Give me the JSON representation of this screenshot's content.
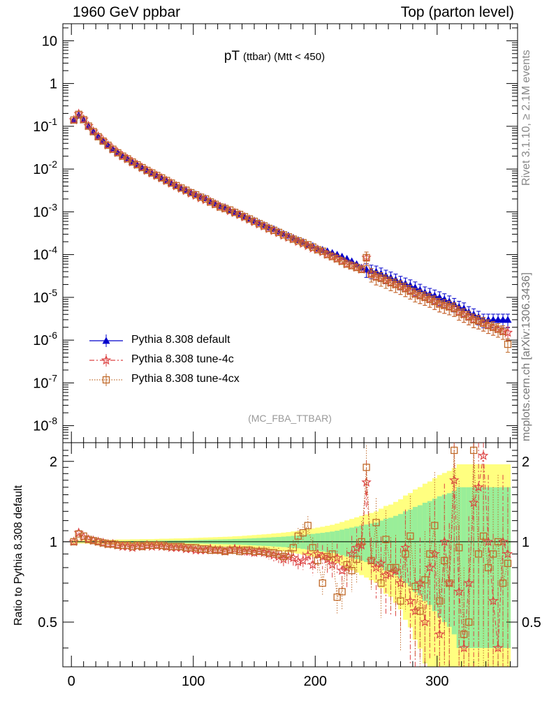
{
  "header": {
    "left": "1960 GeV ppbar",
    "right": "Top (parton level)"
  },
  "side_labels": {
    "rivet": "Rivet 3.1.10, ≥ 2.1M events",
    "mcplots": "mcplots.cern.ch [arXiv:1306.3436]"
  },
  "title": {
    "main": "pT",
    "sub": "(ttbar) (Mtt < 450)"
  },
  "analysis_id": "(MC_FBA_TTBAR)",
  "legend": [
    {
      "label": "Pythia 8.308 default",
      "color": "#0000cc",
      "marker": "triangle",
      "style": "solid"
    },
    {
      "label": "Pythia 8.308 tune-4c",
      "color": "#dd4444",
      "marker": "star",
      "style": "dashdot"
    },
    {
      "label": "Pythia 8.308 tune-4cx",
      "color": "#c06a2a",
      "marker": "square",
      "style": "dotted"
    }
  ],
  "chart_data": [
    {
      "type": "line",
      "panel": "main",
      "yscale": "log",
      "xlim": [
        -7,
        366
      ],
      "ylim": [
        4e-09,
        25
      ],
      "xticks": [
        0,
        100,
        200,
        300
      ],
      "yticks": [
        {
          "value": 1e-08,
          "label": "10^-8"
        },
        {
          "value": 1e-07,
          "label": "10^-7"
        },
        {
          "value": 1e-06,
          "label": "10^-6"
        },
        {
          "value": 1e-05,
          "label": "10^-5"
        },
        {
          "value": 0.0001,
          "label": "10^-4"
        },
        {
          "value": 0.001,
          "label": "10^-3"
        },
        {
          "value": 0.01,
          "label": "10^-2"
        },
        {
          "value": 0.1,
          "label": "10^-1"
        },
        {
          "value": 1,
          "label": "1"
        },
        {
          "value": 10,
          "label": "10"
        }
      ],
      "x": [
        2,
        6,
        10,
        14,
        18,
        22,
        26,
        30,
        34,
        38,
        42,
        46,
        50,
        54,
        58,
        62,
        66,
        70,
        74,
        78,
        82,
        86,
        90,
        94,
        98,
        102,
        106,
        110,
        114,
        118,
        122,
        126,
        130,
        134,
        138,
        142,
        146,
        150,
        154,
        158,
        162,
        166,
        170,
        174,
        178,
        182,
        186,
        190,
        194,
        198,
        202,
        206,
        210,
        214,
        218,
        222,
        226,
        230,
        234,
        238,
        242,
        246,
        250,
        254,
        258,
        262,
        266,
        270,
        274,
        278,
        282,
        286,
        290,
        294,
        298,
        302,
        306,
        310,
        314,
        318,
        322,
        326,
        330,
        334,
        338,
        342,
        346,
        350,
        354,
        358
      ],
      "series": [
        {
          "name": "Pythia 8.308 default",
          "values": [
            0.14,
            0.18,
            0.14,
            0.1,
            0.075,
            0.058,
            0.046,
            0.037,
            0.03,
            0.025,
            0.021,
            0.018,
            0.015,
            0.013,
            0.011,
            0.0095,
            0.0083,
            0.0072,
            0.0063,
            0.0055,
            0.0048,
            0.0042,
            0.0037,
            0.0033,
            0.0029,
            0.0026,
            0.0023,
            0.0021,
            0.0018,
            0.0016,
            0.0014,
            0.0013,
            0.0011,
            0.001,
            0.0009,
            0.0008,
            0.0007,
            0.00063,
            0.00056,
            0.0005,
            0.00044,
            0.0004,
            0.00035,
            0.00031,
            0.00028,
            0.00025,
            0.00022,
            0.0002,
            0.00017,
            0.00016,
            0.00014,
            0.00013,
            0.00012,
            0.00011,
            0.0001,
            9e-05,
            8e-05,
            7e-05,
            6e-05,
            5e-05,
            4.5e-05,
            4.2e-05,
            4e-05,
            3.6e-05,
            3.2e-05,
            2.9e-05,
            2.6e-05,
            2.3e-05,
            2.1e-05,
            1.9e-05,
            1.7e-05,
            1.5e-05,
            1.3e-05,
            1.2e-05,
            1.1e-05,
            1e-05,
            9e-06,
            8e-06,
            7e-06,
            6e-06,
            5.5e-06,
            4.5e-06,
            4e-06,
            3.5e-06,
            3e-06,
            3e-06,
            3e-06,
            3e-06,
            3e-06,
            3e-06
          ]
        },
        {
          "name": "Pythia 8.308 tune-4c",
          "values": [
            0.14,
            0.195,
            0.145,
            0.102,
            0.076,
            0.058,
            0.046,
            0.036,
            0.029,
            0.024,
            0.02,
            0.0172,
            0.0145,
            0.0125,
            0.0107,
            0.0092,
            0.008,
            0.007,
            0.0061,
            0.0053,
            0.0046,
            0.004,
            0.0035,
            0.0031,
            0.0027,
            0.0024,
            0.0021,
            0.0019,
            0.0017,
            0.0015,
            0.0013,
            0.0012,
            0.00105,
            0.00095,
            0.00085,
            0.00075,
            0.00066,
            0.00058,
            0.00051,
            0.00046,
            0.0004,
            0.00036,
            0.00032,
            0.00028,
            0.00025,
            0.00023,
            0.0002,
            0.00018,
            0.00016,
            0.00014,
            0.00013,
            0.000115,
            0.0001,
            9e-05,
            8e-05,
            7e-05,
            6e-05,
            5.5e-05,
            5e-05,
            4.5e-05,
            8.5e-05,
            3.5e-05,
            3e-05,
            2.8e-05,
            2.5e-05,
            2.2e-05,
            2e-05,
            1.8e-05,
            1.6e-05,
            1.4e-05,
            1.2e-05,
            1.1e-05,
            1e-05,
            9e-06,
            8e-06,
            7e-06,
            6.5e-06,
            6e-06,
            5.5e-06,
            4.5e-06,
            4e-06,
            3.5e-06,
            3e-06,
            2.8e-06,
            2.5e-06,
            2.2e-06,
            2e-06,
            1.8e-06,
            1.6e-06,
            1.5e-06
          ]
        },
        {
          "name": "Pythia 8.308 tune-4cx",
          "values": [
            0.14,
            0.19,
            0.143,
            0.101,
            0.075,
            0.057,
            0.045,
            0.036,
            0.029,
            0.024,
            0.02,
            0.0173,
            0.0146,
            0.0126,
            0.0108,
            0.0093,
            0.0081,
            0.0071,
            0.0062,
            0.0054,
            0.0047,
            0.0041,
            0.0036,
            0.0032,
            0.0028,
            0.0025,
            0.0022,
            0.002,
            0.0017,
            0.0015,
            0.0013,
            0.0012,
            0.0011,
            0.00097,
            0.00087,
            0.00077,
            0.00068,
            0.0006,
            0.00053,
            0.00047,
            0.00041,
            0.00037,
            0.00033,
            0.00029,
            0.00026,
            0.00023,
            0.00021,
            0.00019,
            0.00017,
            0.00015,
            0.00013,
            0.00012,
            0.0001,
            9e-05,
            8e-05,
            7e-05,
            6e-05,
            5.5e-05,
            5e-05,
            4.5e-05,
            8.5e-05,
            3.5e-05,
            3e-05,
            2.8e-05,
            2.5e-05,
            2.2e-05,
            2e-05,
            1.8e-05,
            1.6e-05,
            1.4e-05,
            1.2e-05,
            1.1e-05,
            1e-05,
            9e-06,
            8e-06,
            7e-06,
            6.5e-06,
            6e-06,
            5.5e-06,
            4.5e-06,
            4e-06,
            3.5e-06,
            3e-06,
            2.8e-06,
            2.5e-06,
            2.2e-06,
            2e-06,
            1.8e-06,
            1.6e-06,
            8e-07
          ]
        }
      ]
    },
    {
      "type": "line",
      "panel": "ratio",
      "ylabel": "Ratio to Pythia 8.308 default",
      "yscale": "log",
      "xlim": [
        -7,
        366
      ],
      "ylim": [
        0.34,
        2.35
      ],
      "xticks": [
        0,
        100,
        200,
        300
      ],
      "yticks": [
        {
          "value": 0.5,
          "label": "0.5"
        },
        {
          "value": 1,
          "label": "1"
        },
        {
          "value": 2,
          "label": "2"
        }
      ],
      "band": {
        "x": [
          2,
          6,
          10,
          14,
          18,
          22,
          26,
          30,
          34,
          38,
          42,
          46,
          50,
          54,
          58,
          62,
          66,
          70,
          74,
          78,
          82,
          86,
          90,
          94,
          98,
          102,
          106,
          110,
          114,
          118,
          122,
          126,
          130,
          134,
          138,
          142,
          146,
          150,
          154,
          158,
          162,
          166,
          170,
          174,
          178,
          182,
          186,
          190,
          194,
          198,
          202,
          206,
          210,
          214,
          218,
          222,
          226,
          230,
          234,
          238,
          242,
          246,
          250,
          254,
          258,
          262,
          266,
          270,
          274,
          278,
          282,
          286,
          290,
          294,
          298,
          302,
          306,
          310,
          314,
          318,
          322,
          326,
          330,
          334,
          338,
          342,
          346,
          350,
          354,
          358
        ],
        "inner_rel": [
          0.004,
          0.003,
          0.003,
          0.004,
          0.004,
          0.004,
          0.005,
          0.005,
          0.005,
          0.006,
          0.006,
          0.006,
          0.007,
          0.007,
          0.008,
          0.008,
          0.008,
          0.009,
          0.01,
          0.01,
          0.011,
          0.012,
          0.012,
          0.013,
          0.014,
          0.015,
          0.016,
          0.017,
          0.018,
          0.019,
          0.02,
          0.021,
          0.022,
          0.024,
          0.025,
          0.027,
          0.029,
          0.031,
          0.033,
          0.035,
          0.037,
          0.04,
          0.042,
          0.045,
          0.048,
          0.052,
          0.055,
          0.06,
          0.065,
          0.07,
          0.075,
          0.08,
          0.086,
          0.092,
          0.1,
          0.11,
          0.12,
          0.13,
          0.14,
          0.15,
          0.16,
          0.17,
          0.18,
          0.2,
          0.22,
          0.23,
          0.25,
          0.27,
          0.3,
          0.32,
          0.35,
          0.37,
          0.4,
          0.42,
          0.45,
          0.48,
          0.5,
          0.52,
          0.55,
          0.6,
          0.6,
          0.6,
          0.6,
          0.6,
          0.6,
          0.6,
          0.6,
          0.6,
          0.6,
          0.6
        ]
      },
      "series": [
        {
          "name": "Pythia 8.308 tune-4c",
          "values": [
            1.0,
            1.08,
            1.04,
            1.02,
            1.01,
            1.0,
            0.99,
            0.98,
            0.98,
            0.97,
            0.96,
            0.96,
            0.95,
            0.96,
            0.96,
            0.97,
            0.96,
            0.97,
            0.96,
            0.96,
            0.95,
            0.95,
            0.95,
            0.94,
            0.94,
            0.93,
            0.93,
            0.93,
            0.94,
            0.93,
            0.93,
            0.92,
            0.93,
            0.94,
            0.93,
            0.92,
            0.92,
            0.91,
            0.92,
            0.91,
            0.9,
            0.89,
            0.88,
            0.86,
            0.88,
            0.87,
            0.84,
            0.85,
            0.89,
            0.82,
            0.9,
            0.88,
            0.86,
            0.82,
            0.87,
            0.78,
            0.8,
            0.9,
            0.95,
            0.97,
            1.67,
            0.85,
            0.8,
            0.83,
            0.75,
            0.76,
            0.78,
            0.7,
            0.95,
            0.6,
            0.55,
            0.7,
            0.5,
            0.8,
            0.9,
            0.45,
            1.0,
            0.7,
            1.7,
            0.65,
            0.4,
            0.7,
            1.4,
            1.6,
            2.1,
            1.0,
            0.6,
            0.4,
            1.0,
            0.9
          ]
        },
        {
          "name": "Pythia 8.308 tune-4cx",
          "values": [
            1.0,
            1.07,
            1.05,
            1.02,
            1.01,
            1.0,
            0.99,
            0.98,
            0.98,
            0.97,
            0.97,
            0.97,
            0.96,
            0.97,
            0.96,
            0.97,
            0.97,
            0.97,
            0.97,
            0.96,
            0.96,
            0.96,
            0.96,
            0.95,
            0.95,
            0.95,
            0.94,
            0.94,
            0.93,
            0.93,
            0.93,
            0.92,
            0.93,
            0.93,
            0.92,
            0.93,
            0.93,
            0.92,
            0.92,
            0.92,
            0.91,
            0.91,
            0.9,
            0.88,
            0.9,
            0.95,
            1.05,
            1.08,
            1.15,
            0.95,
            0.85,
            0.7,
            0.88,
            0.9,
            0.62,
            0.65,
            0.82,
            0.78,
            0.86,
            1.0,
            1.9,
            0.85,
            1.18,
            0.7,
            1.02,
            0.8,
            0.8,
            0.6,
            0.9,
            1.05,
            0.68,
            0.55,
            0.72,
            0.9,
            1.15,
            0.6,
            0.85,
            0.7,
            2.2,
            0.95,
            0.45,
            0.5,
            2.2,
            0.9,
            1.05,
            0.8,
            0.9,
            1.0,
            0.7,
            0.83
          ]
        }
      ]
    }
  ]
}
